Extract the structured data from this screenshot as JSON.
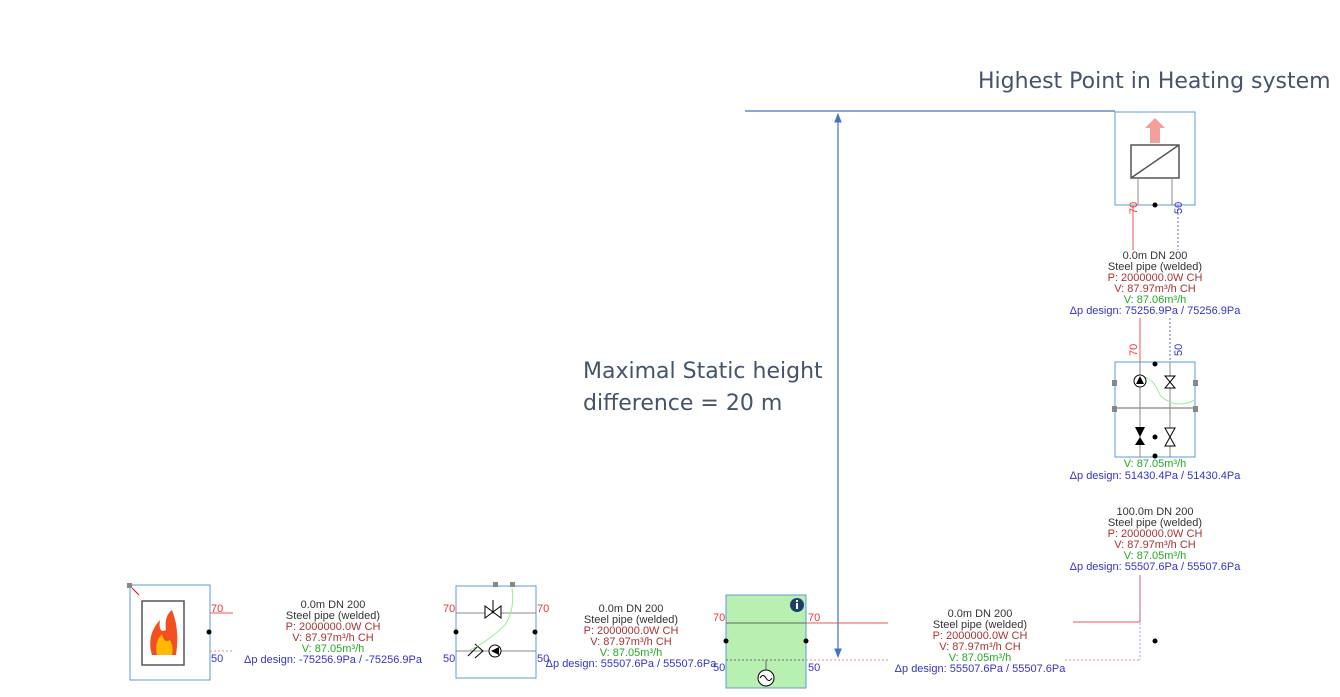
{
  "annotations": {
    "highest_point": "Highest Point in Heating system",
    "static_height": [
      "Maximal Static height",
      "difference = 20 m"
    ]
  },
  "pipe_labels": [
    [
      "0.0m DN 200",
      "Steel pipe (welded)",
      "P: 2000000.0W CH",
      "V: 87.97m³/h CH",
      "V: 87.06m³/h",
      "Δp design: 75256.9Pa / 75256.9Pa"
    ],
    [
      "100.0m DN 200",
      "Steel pipe (welded)",
      "P: 2000000.0W CH",
      "V: 87.97m³/h CH",
      "V: 87.05m³/h",
      "Δp design: 55507.6Pa / 55507.6Pa"
    ],
    [
      "0.0m DN 200",
      "Steel pipe (welded)",
      "P: 2000000.0W CH",
      "V: 87.97m³/h CH",
      "V: 87.05m³/h",
      "Δp design: -75256.9Pa / -75256.9Pa"
    ],
    [
      "0.0m DN 200",
      "Steel pipe (welded)",
      "P: 2000000.0W CH",
      "V: 87.97m³/h CH",
      "V: 87.05m³/h",
      "Δp design: 55507.6Pa / 55507.6Pa"
    ],
    [
      "0.0m DN 200",
      "Steel pipe (welded)",
      "P: 2000000.0W CH",
      "V: 87.97m³/h CH",
      "V: 87.05m³/h",
      "Δp design: 55507.6Pa / 55507.6Pa"
    ]
  ],
  "component_labels": [
    {
      "flow": "V: 87.05m³/h",
      "dp": "Δp design: 51430.4Pa / 51430.4Pa"
    }
  ],
  "ports": [
    70,
    50,
    70,
    50,
    70,
    50,
    70,
    50,
    70,
    50,
    70,
    50,
    70,
    50
  ]
}
